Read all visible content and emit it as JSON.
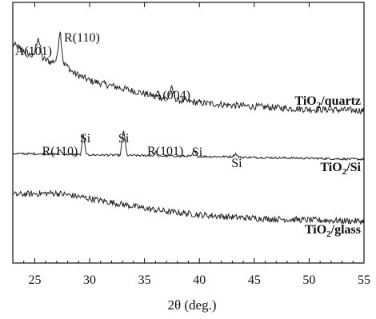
{
  "chart_data": {
    "type": "line",
    "title": "",
    "xlabel": "2θ (deg.)",
    "ylabel": "",
    "xlim": [
      23,
      55
    ],
    "x_ticks": [
      25,
      30,
      35,
      40,
      45,
      50,
      55
    ],
    "x_tick_labels": [
      "25",
      "30",
      "35",
      "40",
      "45",
      "50",
      "55"
    ],
    "grid": false,
    "series": [
      {
        "name": "TiO2/quartz",
        "label_parts": [
          "TiO",
          "2",
          "/quartz"
        ],
        "color": "#222222",
        "points": [
          [
            23.0,
            0.84
          ],
          [
            24.0,
            0.815
          ],
          [
            24.9,
            0.79
          ],
          [
            25.3,
            0.87
          ],
          [
            25.7,
            0.785
          ],
          [
            26.5,
            0.77
          ],
          [
            27.0,
            0.78
          ],
          [
            27.3,
            0.9
          ],
          [
            27.6,
            0.77
          ],
          [
            28.5,
            0.73
          ],
          [
            30.0,
            0.7
          ],
          [
            32.0,
            0.68
          ],
          [
            34.0,
            0.66
          ],
          [
            36.0,
            0.64
          ],
          [
            37.1,
            0.63
          ],
          [
            37.5,
            0.67
          ],
          [
            37.9,
            0.625
          ],
          [
            40.0,
            0.615
          ],
          [
            43.0,
            0.605
          ],
          [
            46.0,
            0.598
          ],
          [
            50.0,
            0.59
          ],
          [
            55.0,
            0.585
          ]
        ],
        "peaks": [
          {
            "x": 25.3,
            "label": "A(101)"
          },
          {
            "x": 27.4,
            "label": "R(110)"
          },
          {
            "x": 37.5,
            "label": "A(004)"
          }
        ]
      },
      {
        "name": "TiO2/Si",
        "label_parts": [
          "TiO",
          "2",
          "/Si"
        ],
        "color": "#222222",
        "points": [
          [
            23.0,
            0.42
          ],
          [
            27.0,
            0.418
          ],
          [
            27.3,
            0.435
          ],
          [
            27.6,
            0.417
          ],
          [
            29.2,
            0.416
          ],
          [
            29.4,
            0.5
          ],
          [
            29.7,
            0.415
          ],
          [
            32.8,
            0.414
          ],
          [
            33.1,
            0.515
          ],
          [
            33.4,
            0.413
          ],
          [
            35.8,
            0.412
          ],
          [
            36.0,
            0.428
          ],
          [
            36.3,
            0.411
          ],
          [
            39.3,
            0.41
          ],
          [
            39.5,
            0.432
          ],
          [
            39.8,
            0.409
          ],
          [
            43.0,
            0.408
          ],
          [
            43.3,
            0.42
          ],
          [
            43.6,
            0.406
          ],
          [
            50.0,
            0.402
          ],
          [
            55.0,
            0.398
          ]
        ],
        "peaks": [
          {
            "x": 27.3,
            "label": "R(110)"
          },
          {
            "x": 29.4,
            "label": "Si"
          },
          {
            "x": 33.1,
            "label": "Si"
          },
          {
            "x": 36.0,
            "label": "R(101)"
          },
          {
            "x": 39.5,
            "label": "Si"
          },
          {
            "x": 43.3,
            "label": "Si"
          }
        ]
      },
      {
        "name": "TiO2/glass",
        "label_parts": [
          "TiO",
          "2",
          "/glass"
        ],
        "color": "#222222",
        "points": [
          [
            23.0,
            0.262
          ],
          [
            25.0,
            0.266
          ],
          [
            27.0,
            0.268
          ],
          [
            29.0,
            0.255
          ],
          [
            31.0,
            0.24
          ],
          [
            33.0,
            0.225
          ],
          [
            35.0,
            0.21
          ],
          [
            37.0,
            0.198
          ],
          [
            40.0,
            0.185
          ],
          [
            43.0,
            0.176
          ],
          [
            46.0,
            0.17
          ],
          [
            50.0,
            0.165
          ],
          [
            55.0,
            0.16
          ]
        ]
      }
    ]
  }
}
